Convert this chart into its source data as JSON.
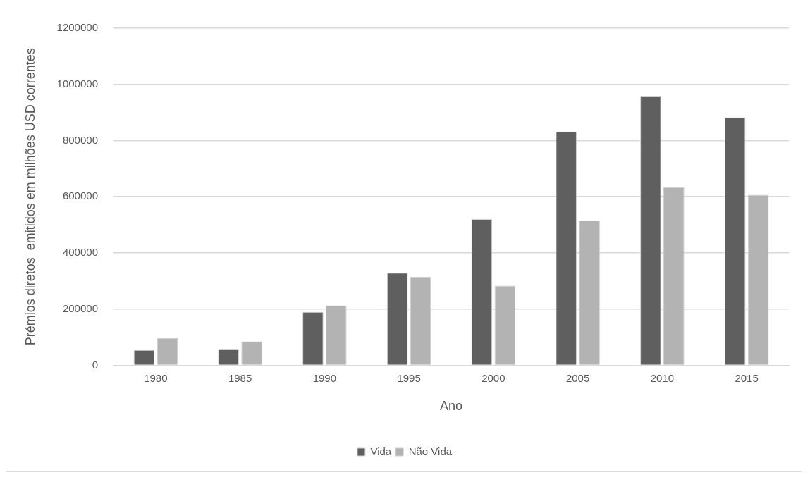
{
  "chart_data": {
    "type": "bar",
    "xlabel": "Ano",
    "ylabel": "Prémios diretos  emitidos em milhões USD correntes",
    "categories": [
      "1980",
      "1985",
      "1990",
      "1995",
      "2000",
      "2005",
      "2010",
      "2015"
    ],
    "series": [
      {
        "name": "Vida",
        "color": "#5f5f5f",
        "values": [
          54000,
          56000,
          190000,
          329000,
          520000,
          832000,
          959000,
          883000
        ]
      },
      {
        "name": "Não Vida",
        "color": "#b3b3b3",
        "values": [
          97000,
          85000,
          213000,
          315000,
          283000,
          516000,
          633000,
          607000
        ]
      }
    ],
    "ylim": [
      0,
      1200000
    ],
    "yticks": [
      0,
      200000,
      400000,
      600000,
      800000,
      1000000,
      1200000
    ],
    "grid": "y",
    "legend": "bottom"
  }
}
